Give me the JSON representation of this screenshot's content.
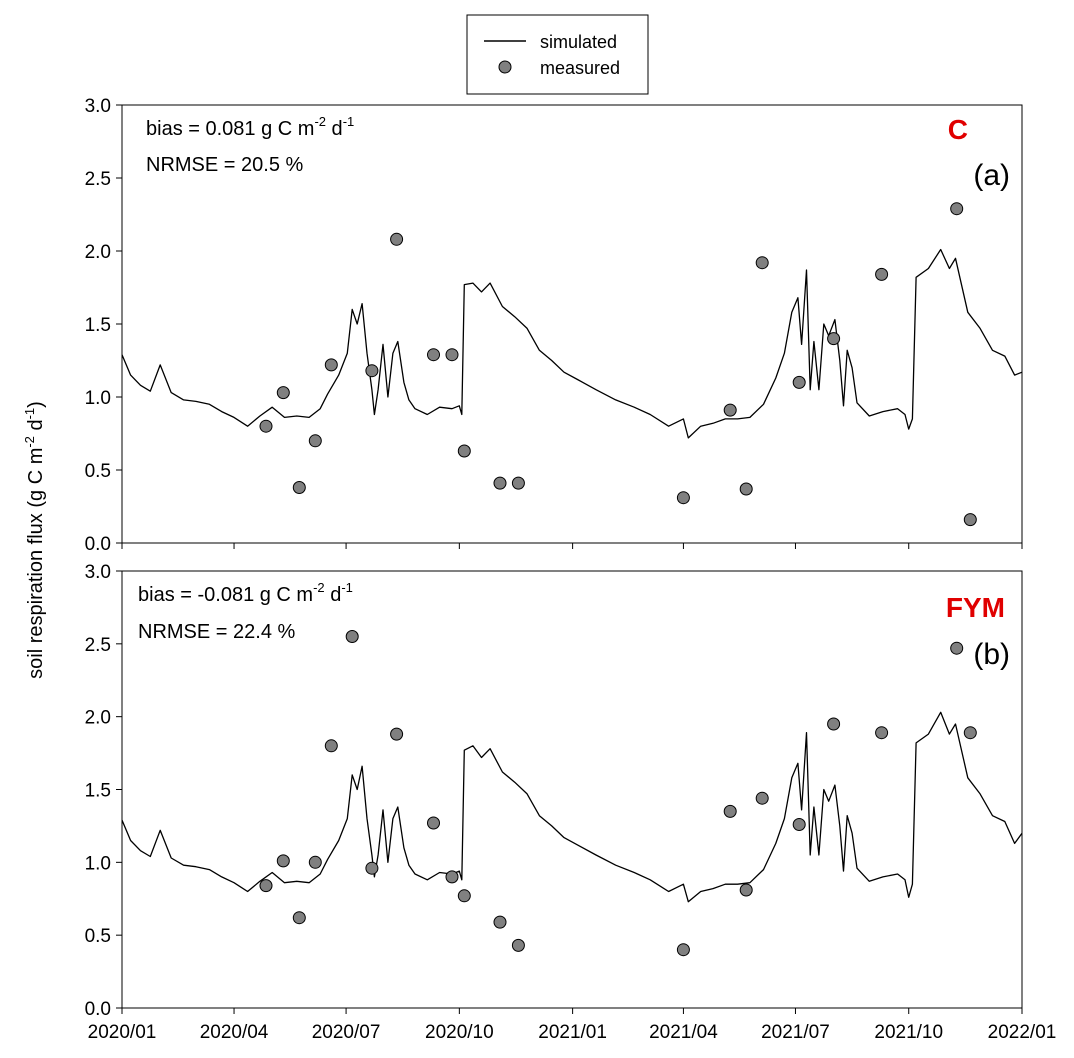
{
  "legend": {
    "simulated": "simulated",
    "measured": "measured"
  },
  "chart_data": {
    "type": "line+scatter",
    "ylabel_pre": "soil respiration flux (g C m",
    "ylabel_exp1": "-2",
    "ylabel_mid": " d",
    "ylabel_exp2": "-1",
    "ylabel_post": ")",
    "ylim": [
      0,
      3.0
    ],
    "yticks": [
      "0.0",
      "0.5",
      "1.0",
      "1.5",
      "2.0",
      "2.5",
      "3.0"
    ],
    "xlim": [
      "2020-01-01",
      "2022-01-01"
    ],
    "xticks": [
      "2020/01",
      "2020/04",
      "2020/07",
      "2020/10",
      "2021/01",
      "2021/04",
      "2021/07",
      "2021/10",
      "2022/01"
    ],
    "panels": [
      {
        "id": "a",
        "treatment": "C",
        "panel_label": "(a)",
        "bias_pre": "bias = 0.081 g C m",
        "bias_exp1": "-2",
        "bias_mid": " d",
        "bias_exp2": "-1",
        "nrmse": "NRMSE = 20.5 %",
        "simulated": [
          [
            "2020-01-01",
            1.29
          ],
          [
            "2020-01-08",
            1.15
          ],
          [
            "2020-01-16",
            1.08
          ],
          [
            "2020-01-24",
            1.04
          ],
          [
            "2020-02-01",
            1.22
          ],
          [
            "2020-02-10",
            1.03
          ],
          [
            "2020-02-20",
            0.98
          ],
          [
            "2020-03-01",
            0.97
          ],
          [
            "2020-03-12",
            0.95
          ],
          [
            "2020-03-22",
            0.9
          ],
          [
            "2020-04-01",
            0.86
          ],
          [
            "2020-04-12",
            0.8
          ],
          [
            "2020-04-22",
            0.87
          ],
          [
            "2020-05-02",
            0.93
          ],
          [
            "2020-05-12",
            0.86
          ],
          [
            "2020-05-22",
            0.87
          ],
          [
            "2020-06-01",
            0.86
          ],
          [
            "2020-06-10",
            0.92
          ],
          [
            "2020-06-16",
            1.02
          ],
          [
            "2020-06-25",
            1.15
          ],
          [
            "2020-07-02",
            1.3
          ],
          [
            "2020-07-06",
            1.6
          ],
          [
            "2020-07-10",
            1.5
          ],
          [
            "2020-07-14",
            1.64
          ],
          [
            "2020-07-18",
            1.3
          ],
          [
            "2020-07-22",
            1.05
          ],
          [
            "2020-07-24",
            0.88
          ],
          [
            "2020-07-27",
            1.05
          ],
          [
            "2020-07-31",
            1.36
          ],
          [
            "2020-08-04",
            1.0
          ],
          [
            "2020-08-08",
            1.3
          ],
          [
            "2020-08-12",
            1.38
          ],
          [
            "2020-08-17",
            1.1
          ],
          [
            "2020-08-21",
            0.98
          ],
          [
            "2020-08-26",
            0.92
          ],
          [
            "2020-09-05",
            0.88
          ],
          [
            "2020-09-15",
            0.93
          ],
          [
            "2020-09-25",
            0.92
          ],
          [
            "2020-10-01",
            0.94
          ],
          [
            "2020-10-03",
            0.88
          ],
          [
            "2020-10-05",
            1.77
          ],
          [
            "2020-10-12",
            1.78
          ],
          [
            "2020-10-19",
            1.72
          ],
          [
            "2020-10-26",
            1.78
          ],
          [
            "2020-11-05",
            1.62
          ],
          [
            "2020-11-15",
            1.55
          ],
          [
            "2020-11-25",
            1.47
          ],
          [
            "2020-12-05",
            1.32
          ],
          [
            "2020-12-15",
            1.25
          ],
          [
            "2020-12-25",
            1.17
          ],
          [
            "2021-01-05",
            1.12
          ],
          [
            "2021-01-20",
            1.05
          ],
          [
            "2021-02-05",
            0.98
          ],
          [
            "2021-02-20",
            0.93
          ],
          [
            "2021-03-05",
            0.88
          ],
          [
            "2021-03-20",
            0.8
          ],
          [
            "2021-04-01",
            0.85
          ],
          [
            "2021-04-05",
            0.72
          ],
          [
            "2021-04-15",
            0.8
          ],
          [
            "2021-04-25",
            0.82
          ],
          [
            "2021-05-05",
            0.85
          ],
          [
            "2021-05-15",
            0.85
          ],
          [
            "2021-05-25",
            0.86
          ],
          [
            "2021-06-05",
            0.95
          ],
          [
            "2021-06-15",
            1.13
          ],
          [
            "2021-06-22",
            1.3
          ],
          [
            "2021-06-28",
            1.58
          ],
          [
            "2021-07-03",
            1.68
          ],
          [
            "2021-07-06",
            1.36
          ],
          [
            "2021-07-10",
            1.87
          ],
          [
            "2021-07-13",
            1.05
          ],
          [
            "2021-07-16",
            1.38
          ],
          [
            "2021-07-20",
            1.05
          ],
          [
            "2021-07-24",
            1.5
          ],
          [
            "2021-07-28",
            1.42
          ],
          [
            "2021-08-02",
            1.53
          ],
          [
            "2021-08-06",
            1.25
          ],
          [
            "2021-08-09",
            0.94
          ],
          [
            "2021-08-12",
            1.32
          ],
          [
            "2021-08-16",
            1.2
          ],
          [
            "2021-08-20",
            0.96
          ],
          [
            "2021-08-30",
            0.87
          ],
          [
            "2021-09-10",
            0.9
          ],
          [
            "2021-09-22",
            0.92
          ],
          [
            "2021-09-28",
            0.88
          ],
          [
            "2021-10-01",
            0.78
          ],
          [
            "2021-10-04",
            0.85
          ],
          [
            "2021-10-07",
            1.82
          ],
          [
            "2021-10-17",
            1.88
          ],
          [
            "2021-10-27",
            2.01
          ],
          [
            "2021-11-03",
            1.88
          ],
          [
            "2021-11-08",
            1.95
          ],
          [
            "2021-11-18",
            1.58
          ],
          [
            "2021-11-28",
            1.47
          ],
          [
            "2021-12-08",
            1.32
          ],
          [
            "2021-12-18",
            1.28
          ],
          [
            "2021-12-26",
            1.15
          ],
          [
            "2022-01-01",
            1.17
          ]
        ],
        "measured": [
          [
            "2020-04-27",
            0.8
          ],
          [
            "2020-05-11",
            1.03
          ],
          [
            "2020-05-24",
            0.38
          ],
          [
            "2020-06-06",
            0.7
          ],
          [
            "2020-06-19",
            1.22
          ],
          [
            "2020-07-22",
            1.18
          ],
          [
            "2020-08-11",
            2.08
          ],
          [
            "2020-09-10",
            1.29
          ],
          [
            "2020-09-25",
            1.29
          ],
          [
            "2020-10-05",
            0.63
          ],
          [
            "2020-11-03",
            0.41
          ],
          [
            "2020-11-18",
            0.41
          ],
          [
            "2021-04-01",
            0.31
          ],
          [
            "2021-05-09",
            0.91
          ],
          [
            "2021-05-22",
            0.37
          ],
          [
            "2021-06-04",
            1.92
          ],
          [
            "2021-07-04",
            1.1
          ],
          [
            "2021-08-01",
            1.4
          ],
          [
            "2021-09-09",
            1.84
          ],
          [
            "2021-11-09",
            2.29
          ],
          [
            "2021-11-20",
            0.16
          ]
        ]
      },
      {
        "id": "b",
        "treatment": "FYM",
        "panel_label": "(b)",
        "bias_pre": "bias = -0.081 g C m",
        "bias_exp1": "-2",
        "bias_mid": " d",
        "bias_exp2": "-1",
        "nrmse": "NRMSE = 22.4 %",
        "simulated": [
          [
            "2020-01-01",
            1.29
          ],
          [
            "2020-01-08",
            1.15
          ],
          [
            "2020-01-16",
            1.08
          ],
          [
            "2020-01-24",
            1.04
          ],
          [
            "2020-02-01",
            1.22
          ],
          [
            "2020-02-10",
            1.03
          ],
          [
            "2020-02-20",
            0.98
          ],
          [
            "2020-03-01",
            0.97
          ],
          [
            "2020-03-12",
            0.95
          ],
          [
            "2020-03-22",
            0.9
          ],
          [
            "2020-04-01",
            0.86
          ],
          [
            "2020-04-12",
            0.8
          ],
          [
            "2020-04-22",
            0.87
          ],
          [
            "2020-05-02",
            0.93
          ],
          [
            "2020-05-12",
            0.86
          ],
          [
            "2020-05-22",
            0.87
          ],
          [
            "2020-06-01",
            0.86
          ],
          [
            "2020-06-10",
            0.92
          ],
          [
            "2020-06-16",
            1.02
          ],
          [
            "2020-06-25",
            1.15
          ],
          [
            "2020-07-02",
            1.3
          ],
          [
            "2020-07-06",
            1.6
          ],
          [
            "2020-07-10",
            1.5
          ],
          [
            "2020-07-14",
            1.66
          ],
          [
            "2020-07-18",
            1.3
          ],
          [
            "2020-07-22",
            1.05
          ],
          [
            "2020-07-24",
            0.9
          ],
          [
            "2020-07-27",
            1.05
          ],
          [
            "2020-07-31",
            1.36
          ],
          [
            "2020-08-04",
            1.0
          ],
          [
            "2020-08-08",
            1.3
          ],
          [
            "2020-08-12",
            1.38
          ],
          [
            "2020-08-17",
            1.1
          ],
          [
            "2020-08-21",
            0.98
          ],
          [
            "2020-08-26",
            0.92
          ],
          [
            "2020-09-05",
            0.88
          ],
          [
            "2020-09-15",
            0.93
          ],
          [
            "2020-09-25",
            0.92
          ],
          [
            "2020-10-01",
            0.94
          ],
          [
            "2020-10-03",
            0.88
          ],
          [
            "2020-10-05",
            1.77
          ],
          [
            "2020-10-12",
            1.8
          ],
          [
            "2020-10-19",
            1.72
          ],
          [
            "2020-10-26",
            1.78
          ],
          [
            "2020-11-05",
            1.62
          ],
          [
            "2020-11-15",
            1.55
          ],
          [
            "2020-11-25",
            1.47
          ],
          [
            "2020-12-05",
            1.32
          ],
          [
            "2020-12-15",
            1.25
          ],
          [
            "2020-12-25",
            1.17
          ],
          [
            "2021-01-05",
            1.12
          ],
          [
            "2021-01-20",
            1.05
          ],
          [
            "2021-02-05",
            0.98
          ],
          [
            "2021-02-20",
            0.93
          ],
          [
            "2021-03-05",
            0.88
          ],
          [
            "2021-03-20",
            0.8
          ],
          [
            "2021-04-01",
            0.85
          ],
          [
            "2021-04-05",
            0.73
          ],
          [
            "2021-04-15",
            0.8
          ],
          [
            "2021-04-25",
            0.82
          ],
          [
            "2021-05-05",
            0.85
          ],
          [
            "2021-05-15",
            0.85
          ],
          [
            "2021-05-25",
            0.86
          ],
          [
            "2021-06-05",
            0.95
          ],
          [
            "2021-06-15",
            1.13
          ],
          [
            "2021-06-22",
            1.3
          ],
          [
            "2021-06-28",
            1.58
          ],
          [
            "2021-07-03",
            1.68
          ],
          [
            "2021-07-06",
            1.36
          ],
          [
            "2021-07-10",
            1.89
          ],
          [
            "2021-07-13",
            1.05
          ],
          [
            "2021-07-16",
            1.38
          ],
          [
            "2021-07-20",
            1.05
          ],
          [
            "2021-07-24",
            1.5
          ],
          [
            "2021-07-28",
            1.42
          ],
          [
            "2021-08-02",
            1.53
          ],
          [
            "2021-08-06",
            1.25
          ],
          [
            "2021-08-09",
            0.94
          ],
          [
            "2021-08-12",
            1.32
          ],
          [
            "2021-08-16",
            1.2
          ],
          [
            "2021-08-20",
            0.96
          ],
          [
            "2021-08-30",
            0.87
          ],
          [
            "2021-09-10",
            0.9
          ],
          [
            "2021-09-22",
            0.92
          ],
          [
            "2021-09-28",
            0.88
          ],
          [
            "2021-10-01",
            0.76
          ],
          [
            "2021-10-04",
            0.85
          ],
          [
            "2021-10-07",
            1.82
          ],
          [
            "2021-10-17",
            1.88
          ],
          [
            "2021-10-27",
            2.03
          ],
          [
            "2021-11-03",
            1.88
          ],
          [
            "2021-11-08",
            1.95
          ],
          [
            "2021-11-18",
            1.58
          ],
          [
            "2021-11-28",
            1.47
          ],
          [
            "2021-12-08",
            1.32
          ],
          [
            "2021-12-18",
            1.28
          ],
          [
            "2021-12-26",
            1.13
          ],
          [
            "2022-01-01",
            1.2
          ]
        ],
        "measured": [
          [
            "2020-04-27",
            0.84
          ],
          [
            "2020-05-11",
            1.01
          ],
          [
            "2020-05-24",
            0.62
          ],
          [
            "2020-06-06",
            1.0
          ],
          [
            "2020-06-19",
            1.8
          ],
          [
            "2020-07-06",
            2.55
          ],
          [
            "2020-07-22",
            0.96
          ],
          [
            "2020-08-11",
            1.88
          ],
          [
            "2020-09-10",
            1.27
          ],
          [
            "2020-09-25",
            0.9
          ],
          [
            "2020-10-05",
            0.77
          ],
          [
            "2020-11-03",
            0.59
          ],
          [
            "2020-11-18",
            0.43
          ],
          [
            "2021-04-01",
            0.4
          ],
          [
            "2021-05-09",
            1.35
          ],
          [
            "2021-05-22",
            0.81
          ],
          [
            "2021-06-04",
            1.44
          ],
          [
            "2021-07-04",
            1.26
          ],
          [
            "2021-08-01",
            1.95
          ],
          [
            "2021-09-09",
            1.89
          ],
          [
            "2021-11-09",
            2.47
          ],
          [
            "2021-11-20",
            1.89
          ]
        ]
      }
    ]
  }
}
